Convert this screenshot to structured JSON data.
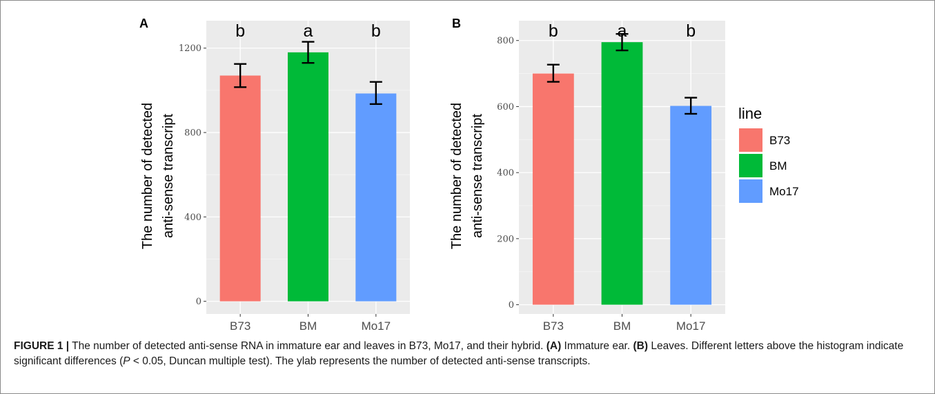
{
  "legend": {
    "title": "line",
    "items": [
      {
        "label": "B73",
        "color": "#F8766D"
      },
      {
        "label": "BM",
        "color": "#00BA38"
      },
      {
        "label": "Mo17",
        "color": "#619CFF"
      }
    ]
  },
  "caption": {
    "figure_label": "FIGURE 1 |",
    "text_1": " The number of detected anti-sense RNA in immature ear and leaves in B73, Mo17, and their hybrid. ",
    "bold_a": "(A)",
    "text_2": " Immature ear. ",
    "bold_b": "(B)",
    "text_3": " Leaves. Different letters above the histogram indicate significant differences (",
    "italic_p": "P",
    "text_4": " < 0.05, Duncan multiple test). The ylab represents the number of detected anti-sense transcripts."
  },
  "chart_data": [
    {
      "type": "bar",
      "panel": "A",
      "categories": [
        "B73",
        "BM",
        "Mo17"
      ],
      "values": [
        1070,
        1180,
        985
      ],
      "error_low": [
        1015,
        1130,
        935
      ],
      "error_high": [
        1125,
        1230,
        1040
      ],
      "significance": [
        "b",
        "a",
        "b"
      ],
      "ylabel_lines": [
        "The number of detected",
        "anti-sense transcript"
      ],
      "ylim": [
        -60,
        1330
      ],
      "yticks": [
        0,
        400,
        800,
        1200
      ],
      "colors": [
        "#F8766D",
        "#00BA38",
        "#619CFF"
      ],
      "grid": true
    },
    {
      "type": "bar",
      "panel": "B",
      "categories": [
        "B73",
        "BM",
        "Mo17"
      ],
      "values": [
        700,
        795,
        602
      ],
      "error_low": [
        675,
        770,
        578
      ],
      "error_high": [
        727,
        820,
        627
      ],
      "significance": [
        "b",
        "a",
        "b"
      ],
      "ylabel_lines": [
        "The number of detected",
        "anti-sense transcript"
      ],
      "ylim": [
        -28,
        860
      ],
      "yticks": [
        0,
        200,
        400,
        600,
        800
      ],
      "colors": [
        "#F8766D",
        "#00BA38",
        "#619CFF"
      ],
      "grid": true
    }
  ]
}
